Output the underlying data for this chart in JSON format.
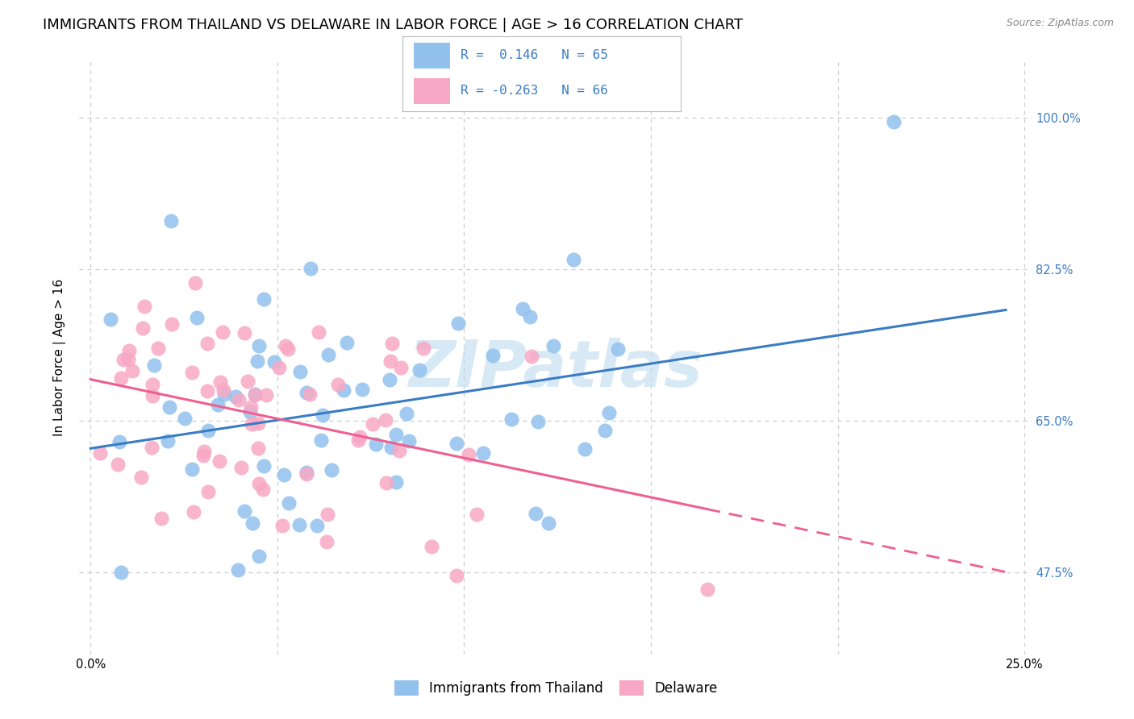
{
  "title": "IMMIGRANTS FROM THAILAND VS DELAWARE IN LABOR FORCE | AGE > 16 CORRELATION CHART",
  "source": "Source: ZipAtlas.com",
  "ylabel": "In Labor Force | Age > 16",
  "watermark": "ZIPatlas",
  "r1": 0.146,
  "n1": 65,
  "r2": -0.263,
  "n2": 66,
  "color_blue": "#92C1EE",
  "color_pink": "#F7A8C4",
  "line_blue": "#3A7CC4",
  "line_pink": "#EE6090",
  "background_color": "#FFFFFF",
  "grid_color": "#CCCCCC",
  "title_fontsize": 13,
  "axis_label_fontsize": 11,
  "tick_fontsize": 10.5
}
